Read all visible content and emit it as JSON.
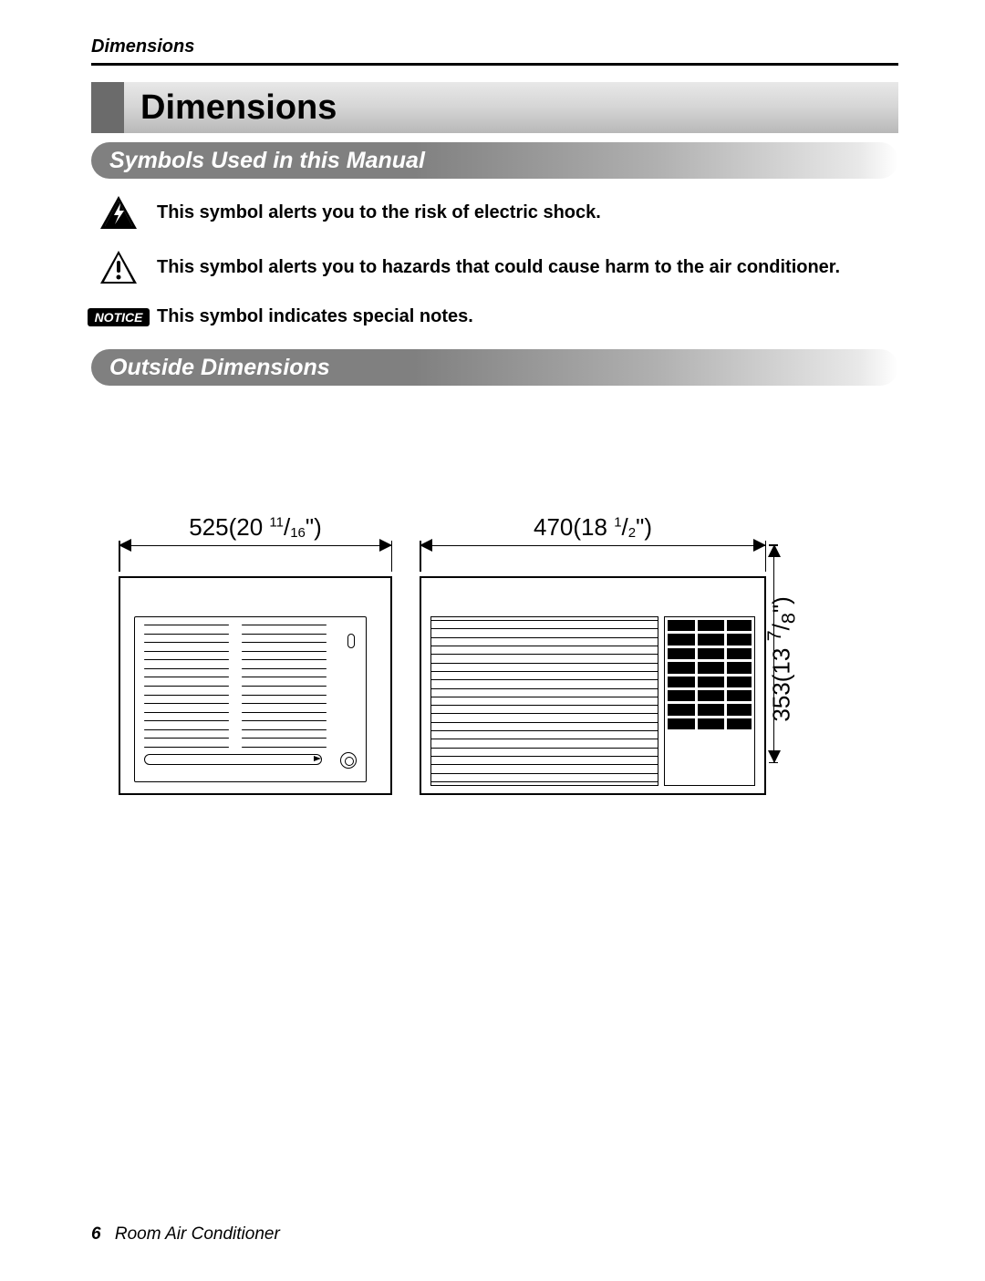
{
  "page": {
    "header": "Dimensions",
    "title": "Dimensions",
    "footer_page": "6",
    "footer_text": "Room Air Conditioner"
  },
  "sections": {
    "symbols_title": "Symbols Used in this Manual",
    "outside_title": "Outside Dimensions"
  },
  "symbols": {
    "shock": "This symbol alerts you to the risk of electric shock.",
    "hazard": "This symbol alerts you to hazards that could cause harm to the air conditioner.",
    "notice_label": "NOTICE",
    "notice_text": "This symbol indicates special notes."
  },
  "dimensions": {
    "width_mm": "525",
    "width_in_whole": "20",
    "width_in_num": "11",
    "width_in_den": "16",
    "depth_mm": "470",
    "depth_in_whole": "18",
    "depth_in_num": "1",
    "depth_in_den": "2",
    "height_mm": "353",
    "height_in_whole": "13",
    "height_in_num": "7",
    "height_in_den": "8"
  },
  "style": {
    "colors": {
      "text": "#000000",
      "background": "#ffffff",
      "title_bar_grad_start": "#e8e8e8",
      "title_bar_grad_end": "#b8b8b8",
      "title_square": "#6b6b6b",
      "pill_grad_start": "#808080",
      "pill_text": "#ffffff",
      "notice_bg": "#000000",
      "notice_text": "#ffffff"
    },
    "fonts": {
      "body": "Arial",
      "header_size_pt": 15,
      "title_size_pt": 29,
      "section_size_pt": 19,
      "symbol_text_size_pt": 15,
      "dim_label_size_pt": 20,
      "footer_size_pt": 14
    },
    "diagrams": {
      "front_view": {
        "vent_columns": 2,
        "vent_lines_per_col": 15
      },
      "side_view": {
        "grill_lines": 20,
        "panel_grid_rows": 8,
        "panel_grid_cols": 3
      }
    }
  }
}
